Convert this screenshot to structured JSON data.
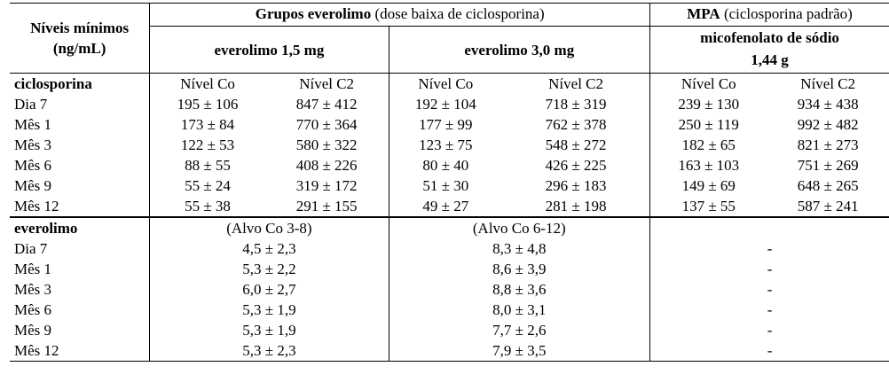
{
  "header": {
    "col0": "Níveis mínimos (ng/mL)",
    "group_everolimo_bold": "Grupos everolimo",
    "group_everolimo_rest": " (dose baixa de ciclosporina)",
    "group_mpa_bold": "MPA",
    "group_mpa_rest": " (ciclosporina padrão)",
    "sub_evr15": "everolimo 1,5 mg",
    "sub_evr30": "everolimo 3,0 mg",
    "sub_mpa": "micofenolato de sódio 1,44 g"
  },
  "ciclosporina": {
    "label": "ciclosporina",
    "level_headers": [
      "Nível Co",
      "Nível C2",
      "Nível Co",
      "Nível C2",
      "Nível Co",
      "Nível C2"
    ],
    "rows": [
      {
        "period": "Dia 7",
        "values": [
          "195 ± 106",
          "847 ± 412",
          "192 ± 104",
          "718 ± 319",
          "239 ± 130",
          "934 ± 438"
        ]
      },
      {
        "period": "Mês 1",
        "values": [
          "173 ± 84",
          "770 ± 364",
          "177 ± 99",
          "762 ± 378",
          "250 ± 119",
          "992 ± 482"
        ]
      },
      {
        "period": "Mês 3",
        "values": [
          "122 ± 53",
          "580 ± 322",
          "123 ± 75",
          "548 ± 272",
          "182 ± 65",
          "821 ± 273"
        ]
      },
      {
        "period": "Mês 6",
        "values": [
          "88 ± 55",
          "408 ± 226",
          "80 ± 40",
          "426 ± 225",
          "163 ± 103",
          "751 ± 269"
        ]
      },
      {
        "period": "Mês 9",
        "values": [
          "55 ± 24",
          "319 ± 172",
          "51 ± 30",
          "296 ± 183",
          "149 ± 69",
          "648 ± 265"
        ]
      },
      {
        "period": "Mês 12",
        "values": [
          "55 ± 38",
          "291 ± 155",
          "49 ± 27",
          "281 ± 198",
          "137 ± 55",
          "587 ± 241"
        ]
      }
    ]
  },
  "everolimo": {
    "label": "everolimo",
    "targets": [
      "(Alvo Co 3-8)",
      "(Alvo Co 6-12)"
    ],
    "rows": [
      {
        "period": "Dia 7",
        "values": [
          "4,5 ± 2,3",
          "8,3 ± 4,8",
          "-"
        ]
      },
      {
        "period": "Mês 1",
        "values": [
          "5,3 ± 2,2",
          "8,6 ± 3,9",
          "-"
        ]
      },
      {
        "period": "Mês 3",
        "values": [
          "6,0 ± 2,7",
          "8,8 ± 3,6",
          "-"
        ]
      },
      {
        "period": "Mês 6",
        "values": [
          "5,3 ± 1,9",
          "8,0 ± 3,1",
          "-"
        ]
      },
      {
        "period": "Mês 9",
        "values": [
          "5,3 ± 1,9",
          "7,7 ± 2,6",
          "-"
        ]
      },
      {
        "period": "Mês 12",
        "values": [
          "5,3 ± 2,3",
          "7,9 ± 3,5",
          "-"
        ]
      }
    ]
  }
}
